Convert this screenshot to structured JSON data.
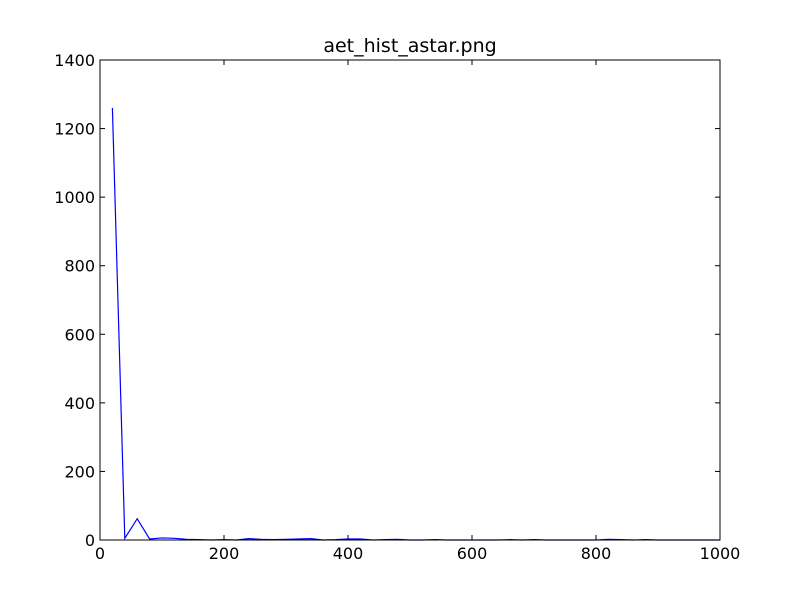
{
  "chart_data": {
    "type": "line",
    "title": "aet_hist_astar.png",
    "xlabel": "",
    "ylabel": "",
    "xlim": [
      0,
      1000
    ],
    "ylim": [
      0,
      1400
    ],
    "x_ticks": [
      "0",
      "200",
      "400",
      "600",
      "800",
      "1000"
    ],
    "y_ticks": [
      "0",
      "200",
      "400",
      "600",
      "800",
      "1000",
      "1200",
      "1400"
    ],
    "grid": false,
    "legend": "none",
    "series": [
      {
        "color": "#0000ff",
        "x": [
          20,
          40,
          60,
          80,
          100,
          120,
          140,
          160,
          180,
          200,
          220,
          240,
          260,
          280,
          300,
          320,
          340,
          360,
          380,
          400,
          420,
          440,
          460,
          480,
          500,
          520,
          540,
          560,
          580,
          600,
          620,
          640,
          660,
          680,
          700,
          720,
          740,
          760,
          780,
          800,
          820,
          840,
          860,
          880,
          900,
          920,
          940,
          960,
          980,
          1000
        ],
        "y": [
          1260,
          5,
          62,
          3,
          6,
          5,
          2,
          1,
          0,
          1,
          0,
          4,
          2,
          1,
          2,
          3,
          4,
          0,
          1,
          3,
          3,
          0,
          1,
          2,
          0,
          0,
          1,
          0,
          0,
          0,
          0,
          0,
          1,
          0,
          1,
          0,
          0,
          0,
          0,
          0,
          2,
          1,
          0,
          1,
          0,
          0,
          0,
          0,
          0,
          0
        ]
      }
    ]
  }
}
